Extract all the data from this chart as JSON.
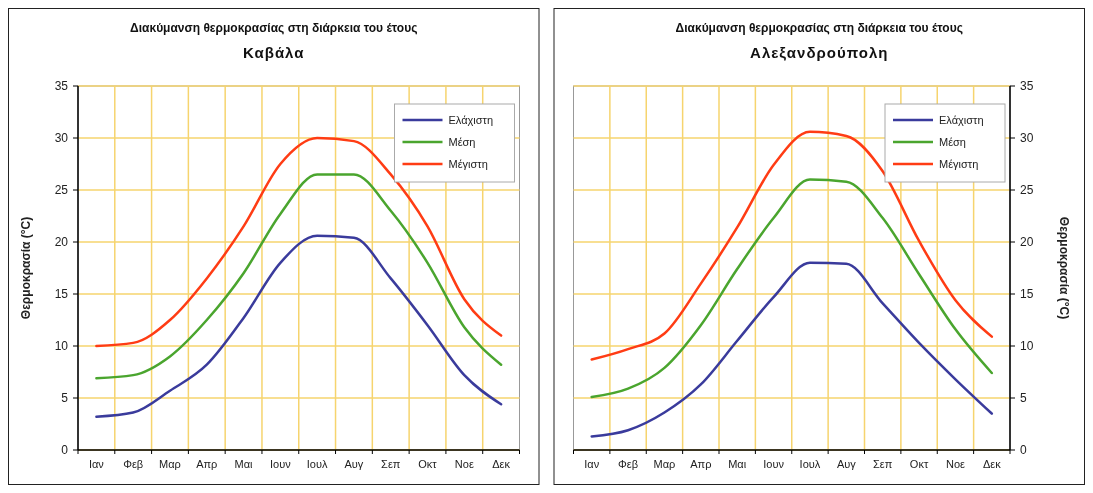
{
  "chart_data": [
    {
      "type": "line",
      "title": "Διακύμανση θερμοκρασίας στη διάρκεια του έτους",
      "subtitle": "Καβάλα",
      "ylabel": "Θερμοκρασία (°C)",
      "categories": [
        "Ιαν",
        "Φεβ",
        "Μαρ",
        "Απρ",
        "Μαι",
        "Ιουν",
        "Ιουλ",
        "Αυγ",
        "Σεπ",
        "Οκτ",
        "Νοε",
        "Δεκ"
      ],
      "series": [
        {
          "name": "Ελάχιστη",
          "color": "#3a3b9c",
          "values": [
            3.2,
            3.6,
            5.7,
            8.2,
            12.7,
            18,
            20.6,
            20.4,
            16.5,
            12,
            7.2,
            4.4
          ]
        },
        {
          "name": "Μέση",
          "color": "#4aa52e",
          "values": [
            6.9,
            7.2,
            9,
            12.5,
            17,
            22.7,
            26.5,
            26.5,
            23,
            18,
            11.8,
            8.2
          ]
        },
        {
          "name": "Μέγιστη",
          "color": "#ff3c14",
          "values": [
            10,
            10.3,
            12.5,
            16.5,
            21.5,
            27.5,
            30,
            29.7,
            26.5,
            21.5,
            14.5,
            11
          ]
        }
      ],
      "ylim": [
        0,
        35
      ],
      "yticks": [
        0,
        5,
        10,
        15,
        20,
        25,
        30,
        35
      ],
      "grid": true,
      "legend": "top right",
      "marker": "none",
      "line_style": "solid"
    },
    {
      "type": "line",
      "title": "Διακύμανση θερμοκρασίας στη διάρκεια του έτους",
      "subtitle": "Αλεξανδρούπολη",
      "y2label": "Θερμοκρασία (°C)",
      "categories": [
        "Ιαν",
        "Φεβ",
        "Μαρ",
        "Απρ",
        "Μαι",
        "Ιουν",
        "Ιουλ",
        "Αυγ",
        "Σεπ",
        "Οκτ",
        "Νοε",
        "Δεκ"
      ],
      "series": [
        {
          "name": "Ελάχιστη",
          "color": "#3a3b9c",
          "axis": "y2",
          "values": [
            1.3,
            1.9,
            3.6,
            6.3,
            10.5,
            14.7,
            18,
            17.9,
            14.1,
            10.3,
            6.8,
            3.5
          ]
        },
        {
          "name": "Μέση",
          "color": "#4aa52e",
          "axis": "y2",
          "values": [
            5.1,
            5.9,
            7.9,
            12,
            17.4,
            22.3,
            26,
            25.8,
            22.3,
            16.9,
            11.6,
            7.4
          ]
        },
        {
          "name": "Μέγιστη",
          "color": "#ff3c14",
          "axis": "y2",
          "values": [
            8.7,
            9.7,
            11.2,
            16,
            21.4,
            27.4,
            30.6,
            30.2,
            26.8,
            20.1,
            14.4,
            10.9
          ]
        }
      ],
      "y2lim": [
        0,
        35
      ],
      "y2ticks": [
        0,
        5,
        10,
        15,
        20,
        25,
        30,
        35
      ],
      "grid": true,
      "legend": "top right",
      "marker": "none",
      "line_style": "solid"
    }
  ]
}
